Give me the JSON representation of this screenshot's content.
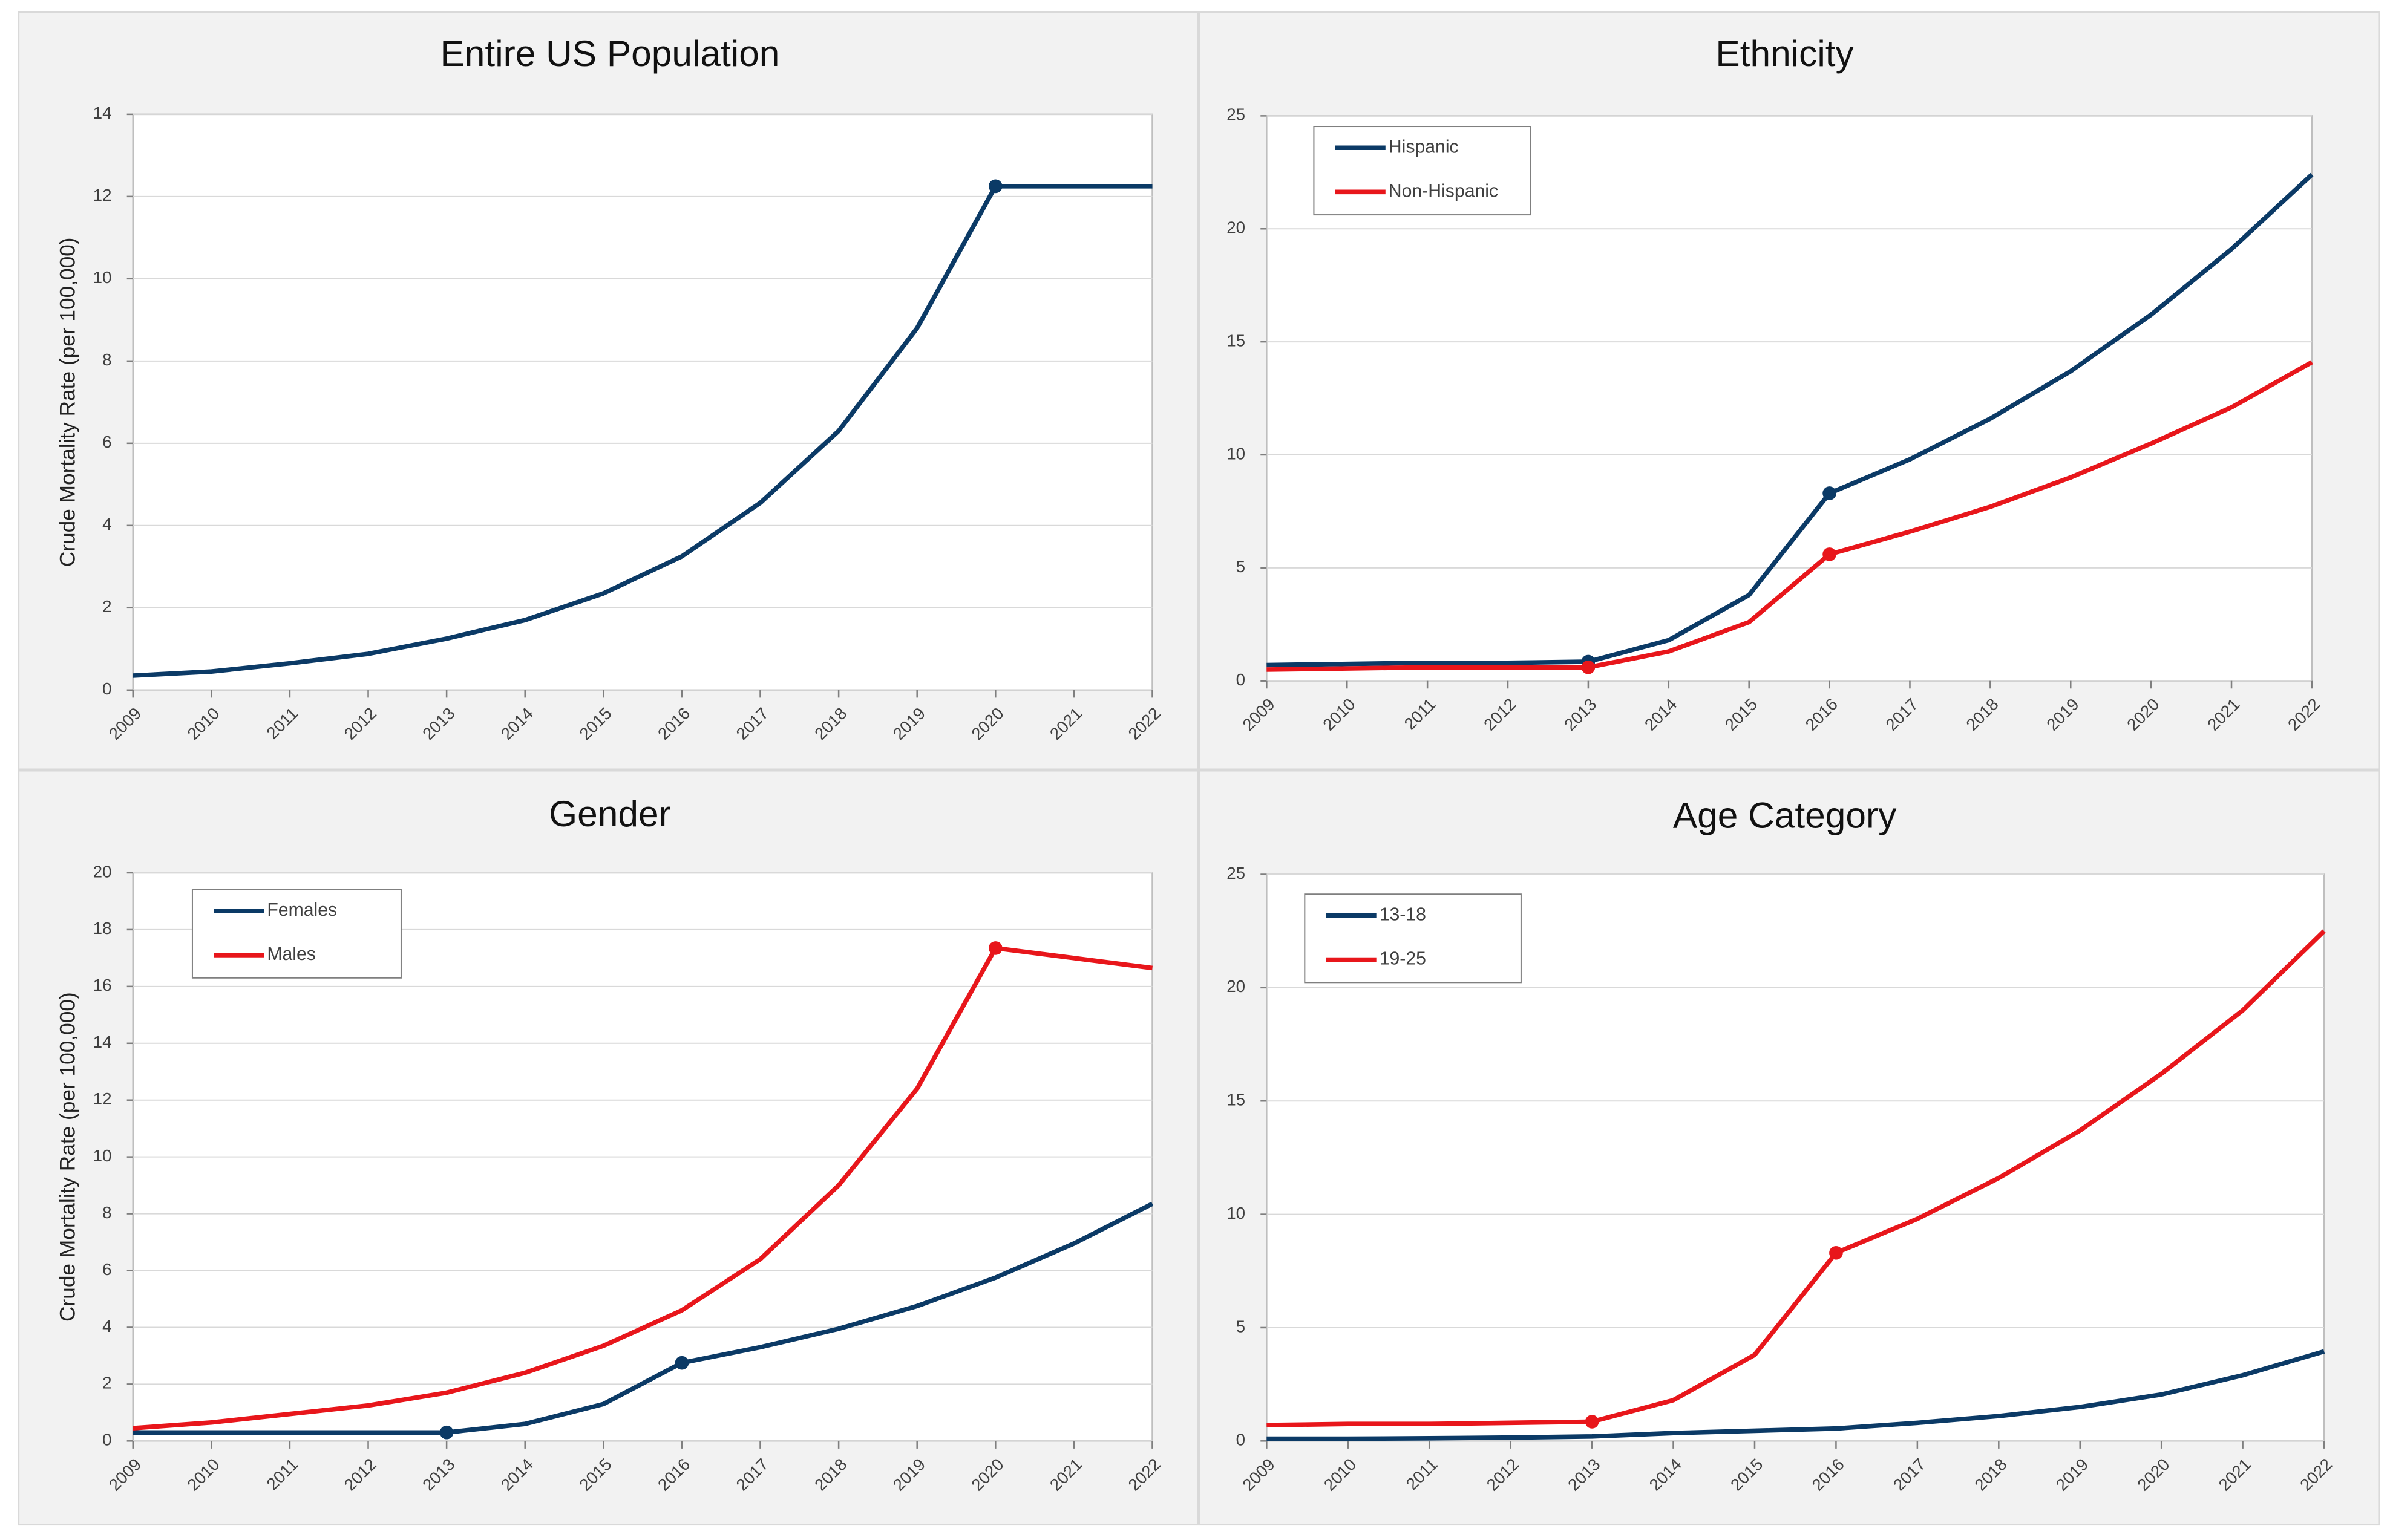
{
  "chart_data": [
    {
      "type": "line",
      "title": "Entire US Population",
      "y_label": "Crude Mortality Rate (per 100,000)",
      "x": [
        2009,
        2010,
        2011,
        2012,
        2013,
        2014,
        2015,
        2016,
        2017,
        2018,
        2019,
        2020,
        2021,
        2022
      ],
      "xlim": [
        2009,
        2022
      ],
      "xticks": [
        2009,
        2010,
        2011,
        2012,
        2013,
        2014,
        2015,
        2016,
        2017,
        2018,
        2019,
        2020,
        2021,
        2022
      ],
      "ylim": [
        0,
        14
      ],
      "yticks": [
        0,
        2,
        4,
        6,
        8,
        10,
        12,
        14
      ],
      "grid": true,
      "series": [
        {
          "color": "#0b3a66",
          "markers": [
            2020
          ],
          "values": [
            0.35,
            0.45,
            0.65,
            0.88,
            1.25,
            1.7,
            2.35,
            3.25,
            4.55,
            6.3,
            8.8,
            12.25,
            12.25,
            12.25
          ]
        }
      ]
    },
    {
      "type": "line",
      "title": "Ethnicity",
      "legend": "upper left",
      "x": [
        2009,
        2010,
        2011,
        2012,
        2013,
        2014,
        2015,
        2016,
        2017,
        2018,
        2019,
        2020,
        2021,
        2022
      ],
      "xlim": [
        2009,
        2022
      ],
      "xticks": [
        2009,
        2010,
        2011,
        2012,
        2013,
        2014,
        2015,
        2016,
        2017,
        2018,
        2019,
        2020,
        2021,
        2022
      ],
      "ylim": [
        0,
        25
      ],
      "yticks": [
        0,
        5,
        10,
        15,
        20,
        25
      ],
      "grid": true,
      "series": [
        {
          "name": "Hispanic",
          "color": "#0b3a66",
          "markers": [
            2013,
            2016
          ],
          "values": [
            0.7,
            0.75,
            0.8,
            0.8,
            0.85,
            1.8,
            3.8,
            8.3,
            9.8,
            11.6,
            13.7,
            16.2,
            19.1,
            22.4
          ]
        },
        {
          "name": "Non-Hispanic",
          "color": "#e8161b",
          "markers": [
            2013,
            2016
          ],
          "values": [
            0.5,
            0.55,
            0.6,
            0.6,
            0.6,
            1.3,
            2.6,
            5.6,
            6.6,
            7.7,
            9.0,
            10.5,
            12.1,
            14.1
          ]
        }
      ]
    },
    {
      "type": "line",
      "title": "Gender",
      "y_label": "Crude Mortality Rate (per 100,000)",
      "legend": "upper left",
      "x": [
        2009,
        2010,
        2011,
        2012,
        2013,
        2014,
        2015,
        2016,
        2017,
        2018,
        2019,
        2020,
        2021,
        2022
      ],
      "xlim": [
        2009,
        2022
      ],
      "xticks": [
        2009,
        2010,
        2011,
        2012,
        2013,
        2014,
        2015,
        2016,
        2017,
        2018,
        2019,
        2020,
        2021,
        2022
      ],
      "ylim": [
        0,
        20
      ],
      "yticks": [
        0,
        2,
        4,
        6,
        8,
        10,
        12,
        14,
        16,
        18,
        20
      ],
      "grid": true,
      "series": [
        {
          "name": "Females",
          "color": "#0b3a66",
          "markers": [
            2013,
            2016
          ],
          "values": [
            0.3,
            0.3,
            0.3,
            0.3,
            0.3,
            0.6,
            1.3,
            2.75,
            3.3,
            3.95,
            4.75,
            5.75,
            6.95,
            8.35
          ]
        },
        {
          "name": "Males",
          "color": "#e8161b",
          "markers": [
            2020
          ],
          "values": [
            0.45,
            0.65,
            0.95,
            1.25,
            1.7,
            2.4,
            3.35,
            4.6,
            6.4,
            9.0,
            12.4,
            17.35,
            17.0,
            16.65
          ]
        }
      ]
    },
    {
      "type": "line",
      "title": "Age Category",
      "legend": "upper left",
      "x": [
        2009,
        2010,
        2011,
        2012,
        2013,
        2014,
        2015,
        2016,
        2017,
        2018,
        2019,
        2020,
        2021,
        2022
      ],
      "xlim": [
        2009,
        2022
      ],
      "xticks": [
        2009,
        2010,
        2011,
        2012,
        2013,
        2014,
        2015,
        2016,
        2017,
        2018,
        2019,
        2020,
        2021,
        2022
      ],
      "ylim": [
        0,
        25
      ],
      "yticks": [
        0,
        5,
        10,
        15,
        20,
        25
      ],
      "grid": true,
      "series": [
        {
          "name": "13-18",
          "color": "#0b3a66",
          "markers": [],
          "values": [
            0.1,
            0.1,
            0.12,
            0.15,
            0.2,
            0.35,
            0.45,
            0.55,
            0.8,
            1.1,
            1.5,
            2.05,
            2.9,
            3.95
          ]
        },
        {
          "name": "19-25",
          "color": "#e8161b",
          "markers": [
            2013,
            2016
          ],
          "values": [
            0.7,
            0.75,
            0.75,
            0.8,
            0.85,
            1.8,
            3.8,
            8.3,
            9.8,
            11.6,
            13.7,
            16.2,
            19.0,
            22.5
          ]
        }
      ]
    }
  ]
}
